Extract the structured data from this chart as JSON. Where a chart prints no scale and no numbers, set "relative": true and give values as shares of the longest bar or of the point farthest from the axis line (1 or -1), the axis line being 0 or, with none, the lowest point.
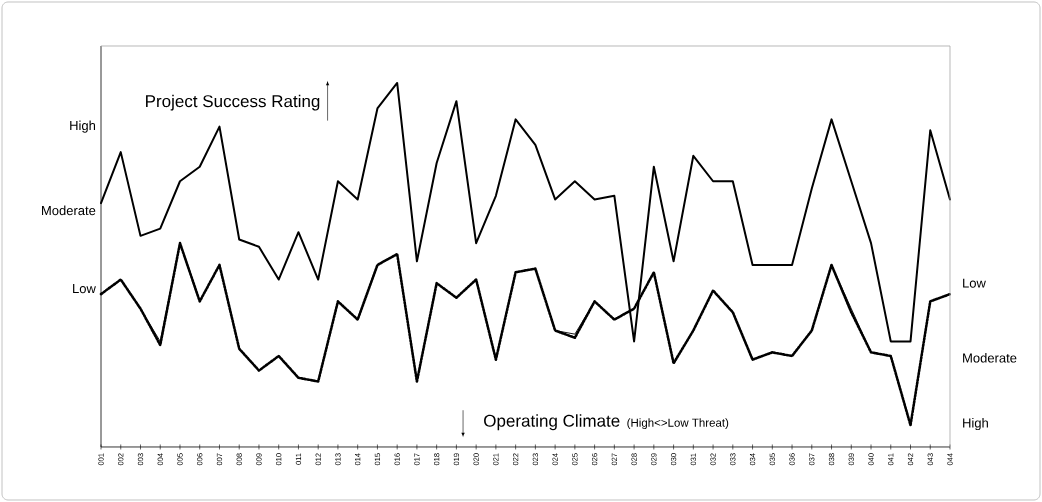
{
  "chart_data": {
    "type": "line",
    "relative": true,
    "ylabel": "Project Success Rating",
    "y2label": "Operating Climate",
    "annotations": [
      "(High<>Low Threat)",
      "High",
      "Moderate",
      "Low",
      "Low",
      "Moderate",
      "High"
    ],
    "categories": [
      "001",
      "002",
      "003",
      "004",
      "005",
      "006",
      "007",
      "008",
      "009",
      "010",
      "011",
      "012",
      "013",
      "014",
      "015",
      "016",
      "017",
      "018",
      "019",
      "020",
      "021",
      "022",
      "023",
      "024",
      "025",
      "026",
      "027",
      "028",
      "029",
      "030",
      "031",
      "032",
      "033",
      "034",
      "035",
      "036",
      "037",
      "038",
      "039",
      "040",
      "041",
      "042",
      "043",
      "044"
    ],
    "marker": "none",
    "series": [
      {
        "color": "#000000",
        "line_style": "solid",
        "values": [
          0.67,
          0.81,
          0.58,
          0.6,
          0.73,
          0.77,
          0.88,
          0.57,
          0.55,
          0.46,
          0.59,
          0.46,
          0.73,
          0.68,
          0.93,
          1.0,
          0.51,
          0.78,
          0.95,
          0.56,
          0.69,
          0.9,
          0.83,
          0.68,
          0.73,
          0.68,
          0.69,
          0.29,
          0.77,
          0.51,
          0.8,
          0.73,
          0.73,
          0.5,
          0.5,
          0.5,
          0.71,
          0.9,
          0.73,
          0.56,
          0.29,
          0.29,
          0.87,
          0.68
        ]
      },
      {
        "color": "#000000",
        "line_style": "solid",
        "values": [
          0.42,
          0.46,
          0.38,
          0.29,
          0.56,
          0.4,
          0.5,
          0.27,
          0.21,
          0.25,
          0.19,
          0.18,
          0.4,
          0.35,
          0.5,
          0.53,
          0.18,
          0.45,
          0.41,
          0.46,
          0.24,
          0.48,
          0.49,
          0.32,
          0.31,
          0.4,
          0.35,
          0.38,
          0.48,
          0.23,
          0.32,
          0.43,
          0.37,
          0.24,
          0.26,
          0.25,
          0.32,
          0.5,
          0.38,
          0.26,
          0.25,
          0.06,
          0.4,
          0.42
        ]
      },
      {
        "color": "#000000",
        "line_style": "dotted",
        "values": [
          0.42,
          0.46,
          0.38,
          0.28,
          0.56,
          0.4,
          0.5,
          0.27,
          0.21,
          0.25,
          0.19,
          0.18,
          0.4,
          0.35,
          0.5,
          0.53,
          0.18,
          0.45,
          0.41,
          0.46,
          0.24,
          0.48,
          0.49,
          0.32,
          0.3,
          0.4,
          0.35,
          0.38,
          0.48,
          0.23,
          0.32,
          0.43,
          0.37,
          0.24,
          0.26,
          0.25,
          0.32,
          0.5,
          0.37,
          0.26,
          0.25,
          0.06,
          0.4,
          0.42
        ]
      }
    ]
  }
}
